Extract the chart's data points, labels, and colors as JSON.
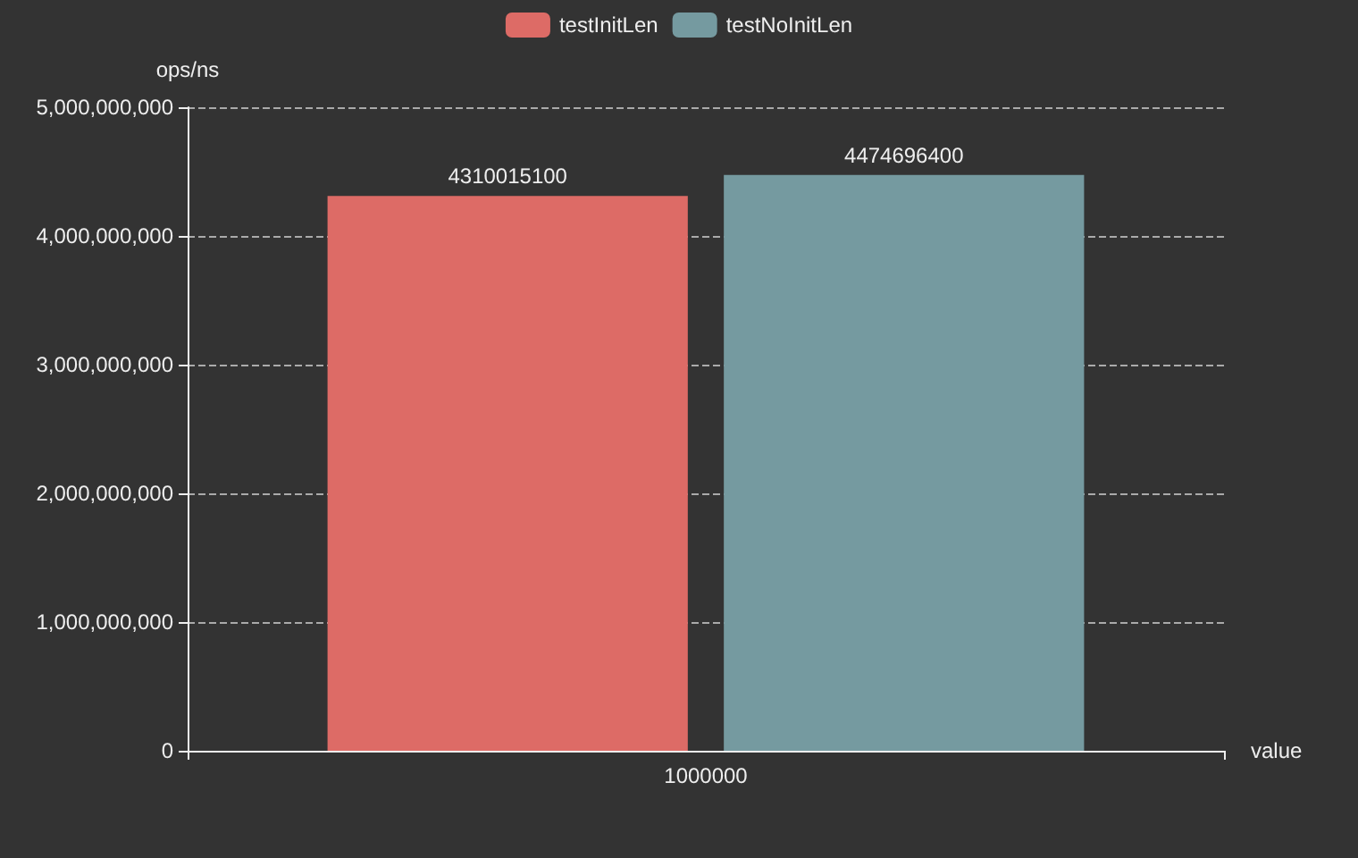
{
  "chart_data": {
    "type": "bar",
    "categories": [
      "1000000"
    ],
    "series": [
      {
        "name": "testInitLen",
        "color": "#dd6b66",
        "values": [
          4310015100
        ]
      },
      {
        "name": "testNoInitLen",
        "color": "#759aa0",
        "values": [
          4474696400
        ]
      }
    ],
    "xlabel": "value",
    "ylabel": "ops/ns",
    "ylim": [
      0,
      5000000000
    ],
    "yticks": [
      0,
      {
        "value": 1000000000,
        "label": "1,000,000,000"
      },
      {
        "value": 2000000000,
        "label": "2,000,000,000"
      },
      {
        "value": 3000000000,
        "label": "3,000,000,000"
      },
      {
        "value": 4000000000,
        "label": "4,000,000,000"
      },
      {
        "value": 5000000000,
        "label": "5,000,000,000"
      }
    ],
    "grid": "y",
    "legend": "top",
    "data_labels": true
  }
}
